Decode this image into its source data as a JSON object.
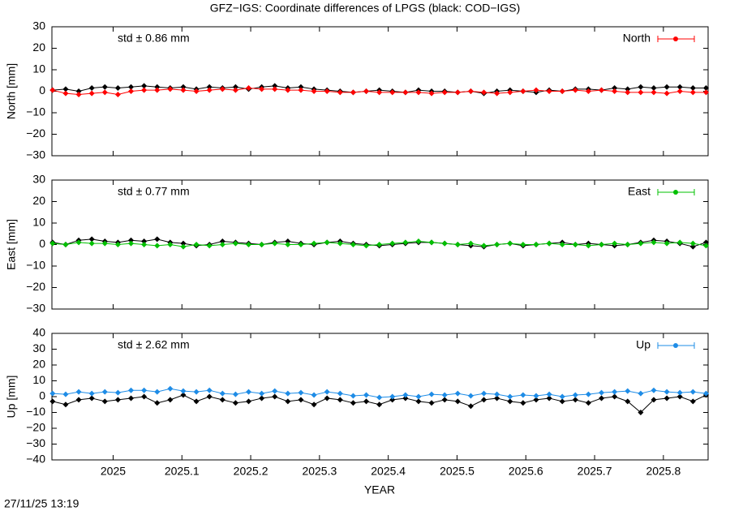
{
  "title": "GFZ−IGS: Coordinate differences of LPGS (black: COD−IGS)",
  "xlabel": "YEAR",
  "timestamp": "27/11/25 13:19",
  "chart_data": [
    {
      "type": "line",
      "ylabel": "North [mm]",
      "annotation": "std ± 0.86 mm",
      "xlim": [
        2024.911,
        2025.865
      ],
      "xticks": [
        2025,
        2025.1,
        2025.2,
        2025.3,
        2025.4,
        2025.5,
        2025.6,
        2025.7,
        2025.8
      ],
      "ylim": [
        -30,
        30
      ],
      "yticks": [
        {
          "value": -30,
          "label": "−30"
        },
        {
          "value": -20,
          "label": "−20"
        },
        {
          "value": -10,
          "label": "−10"
        },
        0,
        10,
        20,
        30
      ],
      "x": [
        2024.912,
        2024.931,
        2024.95,
        2024.969,
        2024.988,
        2025.007,
        2025.026,
        2025.045,
        2025.064,
        2025.083,
        2025.102,
        2025.121,
        2025.14,
        2025.159,
        2025.178,
        2025.197,
        2025.216,
        2025.235,
        2025.254,
        2025.273,
        2025.292,
        2025.311,
        2025.33,
        2025.349,
        2025.368,
        2025.387,
        2025.406,
        2025.425,
        2025.444,
        2025.463,
        2025.482,
        2025.501,
        2025.52,
        2025.539,
        2025.558,
        2025.577,
        2025.596,
        2025.615,
        2025.634,
        2025.653,
        2025.672,
        2025.691,
        2025.71,
        2025.729,
        2025.748,
        2025.767,
        2025.786,
        2025.805,
        2025.824,
        2025.843,
        2025.862
      ],
      "series": [
        {
          "color": "#000000",
          "values": [
            0.5,
            1,
            0,
            1.5,
            2,
            1.5,
            2,
            2.5,
            2,
            1.5,
            2,
            1,
            2,
            1.5,
            2,
            1,
            2,
            2.5,
            1.5,
            2,
            1,
            0.5,
            0,
            -0.5,
            0,
            0.5,
            0,
            -0.5,
            0.5,
            0,
            0,
            -0.5,
            0,
            -1,
            0,
            0.5,
            0,
            -0.5,
            0.5,
            0,
            1,
            1,
            0.5,
            1.5,
            1,
            2,
            1.5,
            2,
            2,
            1.5,
            1.5
          ]
        },
        {
          "name": "North",
          "color": "#ff0000",
          "values": [
            0.5,
            -1,
            -1.5,
            -1,
            -0.5,
            -1.5,
            0,
            0.5,
            0.5,
            1,
            0.5,
            0,
            0.5,
            1,
            0.5,
            1.5,
            1,
            1,
            0.5,
            0.5,
            0,
            0,
            -0.5,
            -0.5,
            0,
            -0.5,
            -0.5,
            -0.5,
            -0.5,
            -1,
            -0.5,
            -0.5,
            0,
            -0.5,
            -1,
            -0.5,
            0,
            0.5,
            0,
            0,
            0.5,
            0,
            0.5,
            0,
            -0.5,
            -0.5,
            -0.5,
            -1,
            0,
            -0.5,
            -0.5
          ]
        }
      ]
    },
    {
      "type": "line",
      "ylabel": "East [mm]",
      "annotation": "std ± 0.77 mm",
      "xlim": [
        2024.911,
        2025.865
      ],
      "xticks": [
        2025,
        2025.1,
        2025.2,
        2025.3,
        2025.4,
        2025.5,
        2025.6,
        2025.7,
        2025.8
      ],
      "ylim": [
        -30,
        30
      ],
      "yticks": [
        {
          "value": -30,
          "label": "−30"
        },
        {
          "value": -20,
          "label": "−20"
        },
        {
          "value": -10,
          "label": "−10"
        },
        0,
        10,
        20,
        30
      ],
      "x": [
        2024.912,
        2024.931,
        2024.95,
        2024.969,
        2024.988,
        2025.007,
        2025.026,
        2025.045,
        2025.064,
        2025.083,
        2025.102,
        2025.121,
        2025.14,
        2025.159,
        2025.178,
        2025.197,
        2025.216,
        2025.235,
        2025.254,
        2025.273,
        2025.292,
        2025.311,
        2025.33,
        2025.349,
        2025.368,
        2025.387,
        2025.406,
        2025.425,
        2025.444,
        2025.463,
        2025.482,
        2025.501,
        2025.52,
        2025.539,
        2025.558,
        2025.577,
        2025.596,
        2025.615,
        2025.634,
        2025.653,
        2025.672,
        2025.691,
        2025.71,
        2025.729,
        2025.748,
        2025.767,
        2025.786,
        2025.805,
        2025.824,
        2025.843,
        2025.862
      ],
      "series": [
        {
          "color": "#000000",
          "values": [
            1,
            0,
            2,
            2.5,
            1.5,
            1,
            2,
            1.5,
            2.5,
            1,
            0.5,
            -0.5,
            0,
            1.5,
            1,
            0.5,
            0,
            1,
            1.5,
            0.5,
            0,
            1,
            1.5,
            0.5,
            0,
            -0.5,
            0,
            0.5,
            1,
            1,
            0.5,
            0,
            -0.5,
            -1,
            0,
            0.5,
            -0.5,
            0,
            0.5,
            1,
            0,
            0.5,
            0,
            -0.5,
            0,
            1,
            2,
            1.5,
            0.5,
            -1,
            1
          ]
        },
        {
          "name": "East",
          "color": "#00c000",
          "values": [
            0.5,
            0,
            1,
            0.5,
            0.5,
            0,
            0.5,
            0,
            -0.5,
            0,
            -1,
            0,
            -0.5,
            0,
            0.5,
            0,
            0,
            0.5,
            0,
            0,
            0.5,
            1,
            0.5,
            0,
            -0.5,
            0,
            0.5,
            1,
            1.5,
            1,
            0.5,
            0,
            0.5,
            -0.5,
            0,
            0.5,
            0,
            0,
            0.5,
            0,
            0,
            -0.5,
            0,
            0.5,
            0,
            0.5,
            1,
            0.5,
            1,
            0.5,
            -0.5
          ]
        }
      ]
    },
    {
      "type": "line",
      "ylabel": "Up [mm]",
      "annotation": "std ± 2.62 mm",
      "xlim": [
        2024.911,
        2025.865
      ],
      "xticks": [
        2025,
        2025.1,
        2025.2,
        2025.3,
        2025.4,
        2025.5,
        2025.6,
        2025.7,
        2025.8
      ],
      "ylim": [
        -40,
        40
      ],
      "yticks": [
        {
          "value": -40,
          "label": "−40"
        },
        {
          "value": -30,
          "label": "−30"
        },
        {
          "value": -20,
          "label": "−20"
        },
        {
          "value": -10,
          "label": "−10"
        },
        0,
        10,
        20,
        30,
        40
      ],
      "x": [
        2024.912,
        2024.931,
        2024.95,
        2024.969,
        2024.988,
        2025.007,
        2025.026,
        2025.045,
        2025.064,
        2025.083,
        2025.102,
        2025.121,
        2025.14,
        2025.159,
        2025.178,
        2025.197,
        2025.216,
        2025.235,
        2025.254,
        2025.273,
        2025.292,
        2025.311,
        2025.33,
        2025.349,
        2025.368,
        2025.387,
        2025.406,
        2025.425,
        2025.444,
        2025.463,
        2025.482,
        2025.501,
        2025.52,
        2025.539,
        2025.558,
        2025.577,
        2025.596,
        2025.615,
        2025.634,
        2025.653,
        2025.672,
        2025.691,
        2025.71,
        2025.729,
        2025.748,
        2025.767,
        2025.786,
        2025.805,
        2025.824,
        2025.843,
        2025.862
      ],
      "series": [
        {
          "color": "#000000",
          "values": [
            -3,
            -5,
            -2,
            -1,
            -3,
            -2,
            -1,
            0,
            -4,
            -2,
            1,
            -3,
            0,
            -2,
            -4,
            -3,
            -1,
            0,
            -3,
            -2,
            -5,
            -1,
            -2,
            -4,
            -3,
            -5,
            -2,
            -1,
            -3,
            -4,
            -2,
            -3,
            -6,
            -2,
            -1,
            -3,
            -4,
            -2,
            -1,
            -3,
            -2,
            -4,
            -1,
            0,
            -3,
            -10,
            -2,
            -1,
            0,
            -3,
            1
          ]
        },
        {
          "name": "Up",
          "color": "#1e8ce6",
          "values": [
            2,
            1.5,
            3,
            2,
            3,
            2.5,
            4,
            4,
            3,
            5,
            3.5,
            3,
            4,
            2,
            1.5,
            3,
            2,
            3.5,
            2,
            2.5,
            1,
            3,
            2,
            0.5,
            1,
            -0.5,
            0,
            1,
            0,
            1.5,
            1,
            2,
            0.5,
            2,
            1.5,
            0,
            1,
            0.5,
            1.5,
            0,
            1,
            1.5,
            2.5,
            3,
            3.5,
            2,
            4,
            3,
            2.5,
            3,
            2
          ]
        }
      ]
    }
  ]
}
